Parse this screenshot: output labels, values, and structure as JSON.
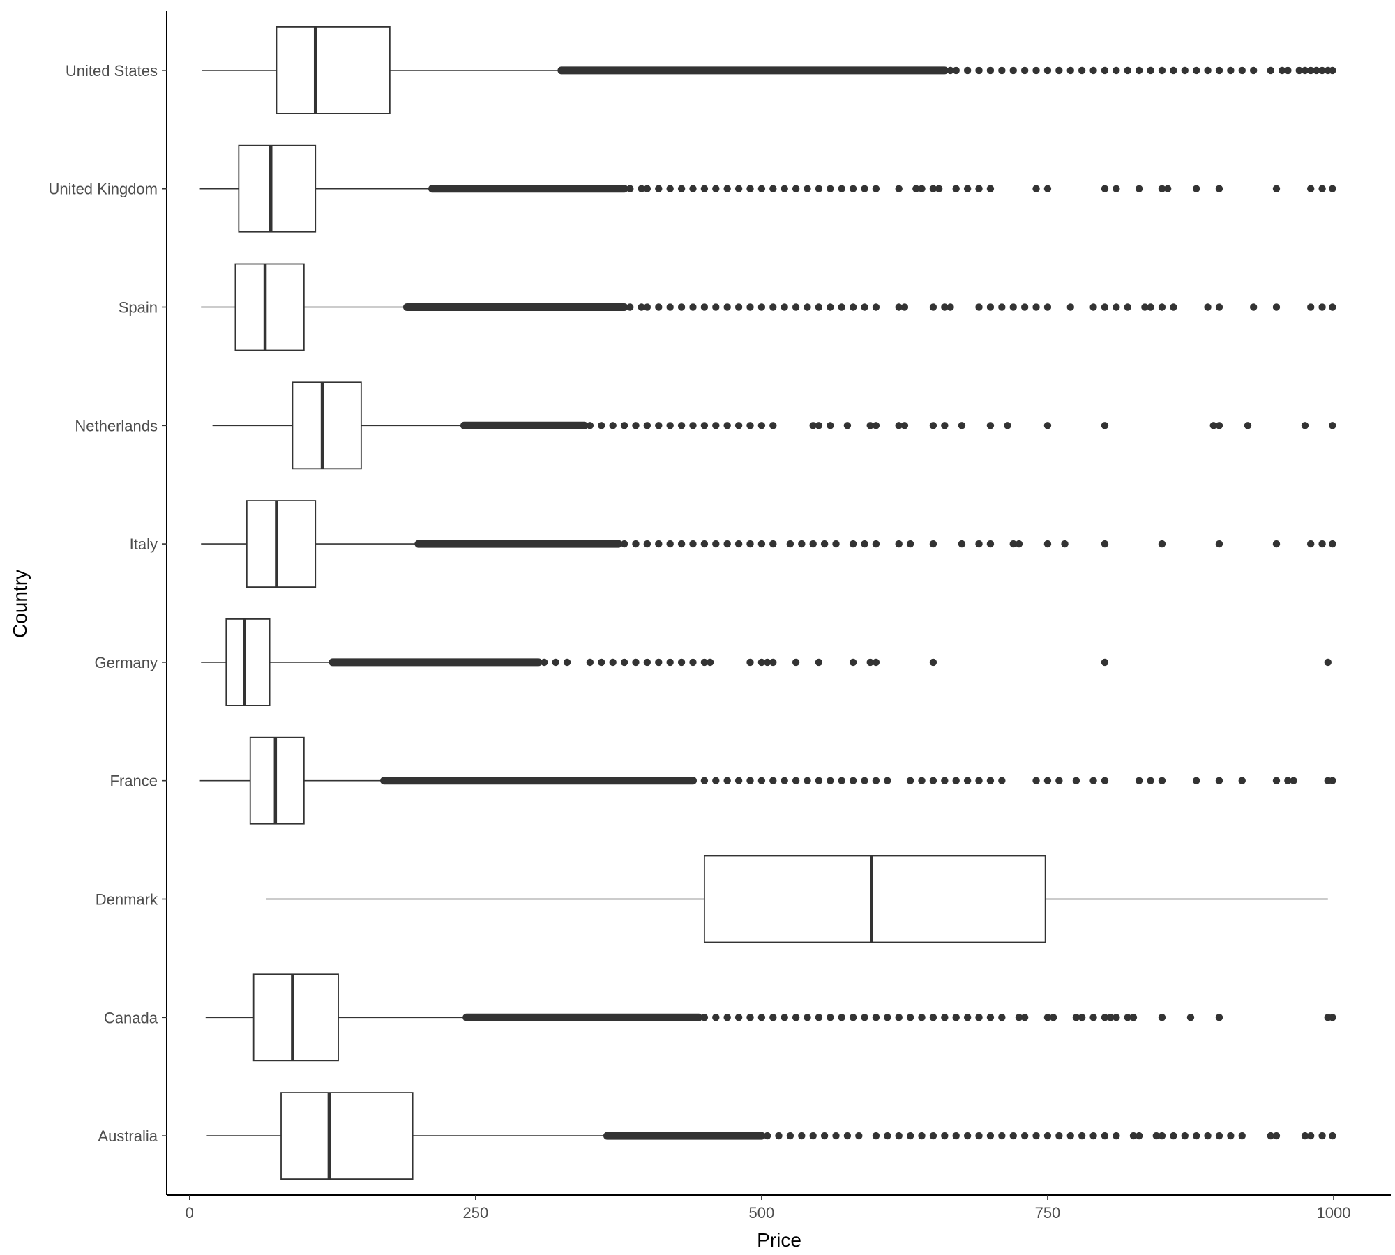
{
  "chart_data": {
    "type": "boxplot",
    "orientation": "horizontal",
    "xlabel": "Price",
    "ylabel": "Country",
    "xlim": [
      -20,
      1050
    ],
    "x_ticks": [
      0,
      250,
      500,
      750,
      1000
    ],
    "x_tick_labels": [
      "0",
      "250",
      "500",
      "750",
      "1000"
    ],
    "grid": false,
    "legend": "none",
    "colors": {
      "box_stroke": "#333333",
      "box_fill": "#ffffff",
      "outlier": "#333333",
      "axis": "#000000",
      "text": "#4d4d4d"
    },
    "categories": [
      "United States",
      "United Kingdom",
      "Spain",
      "Netherlands",
      "Italy",
      "Germany",
      "France",
      "Denmark",
      "Canada",
      "Australia"
    ],
    "boxes": [
      {
        "name": "United States",
        "whisker_low": 11,
        "q1": 76,
        "median": 110,
        "q3": 175,
        "whisker_high": 325,
        "outlier_ranges": [
          [
            325,
            660
          ]
        ],
        "outliers": [
          665,
          670,
          680,
          690,
          700,
          710,
          720,
          730,
          740,
          750,
          760,
          770,
          780,
          790,
          800,
          810,
          820,
          830,
          840,
          850,
          860,
          870,
          880,
          890,
          900,
          910,
          920,
          930,
          945,
          955,
          960,
          970,
          975,
          980,
          985,
          990,
          995,
          999
        ]
      },
      {
        "name": "United Kingdom",
        "whisker_low": 9,
        "q1": 43,
        "median": 71,
        "q3": 110,
        "whisker_high": 212,
        "outlier_ranges": [
          [
            212,
            380
          ]
        ],
        "outliers": [
          385,
          395,
          400,
          410,
          420,
          430,
          440,
          450,
          460,
          470,
          480,
          490,
          500,
          510,
          520,
          530,
          540,
          550,
          560,
          570,
          580,
          590,
          600,
          620,
          635,
          640,
          650,
          655,
          670,
          680,
          690,
          700,
          740,
          750,
          800,
          810,
          830,
          850,
          855,
          880,
          900,
          950,
          980,
          990,
          999
        ]
      },
      {
        "name": "Spain",
        "whisker_low": 10,
        "q1": 40,
        "median": 66,
        "q3": 100,
        "whisker_high": 190,
        "outlier_ranges": [
          [
            190,
            380
          ]
        ],
        "outliers": [
          385,
          395,
          400,
          410,
          420,
          430,
          440,
          450,
          460,
          470,
          480,
          490,
          500,
          510,
          520,
          530,
          540,
          550,
          560,
          570,
          580,
          590,
          600,
          620,
          625,
          650,
          660,
          665,
          690,
          700,
          710,
          720,
          730,
          740,
          750,
          770,
          790,
          800,
          810,
          820,
          835,
          840,
          850,
          860,
          890,
          900,
          930,
          950,
          980,
          990,
          999
        ]
      },
      {
        "name": "Netherlands",
        "whisker_low": 20,
        "q1": 90,
        "median": 116,
        "q3": 150,
        "whisker_high": 240,
        "outlier_ranges": [
          [
            240,
            345
          ]
        ],
        "outliers": [
          350,
          360,
          370,
          380,
          390,
          400,
          410,
          420,
          430,
          440,
          450,
          460,
          470,
          480,
          490,
          500,
          510,
          545,
          550,
          560,
          575,
          595,
          600,
          620,
          625,
          650,
          660,
          675,
          700,
          715,
          750,
          800,
          895,
          900,
          925,
          975,
          999
        ]
      },
      {
        "name": "Italy",
        "whisker_low": 10,
        "q1": 50,
        "median": 76,
        "q3": 110,
        "whisker_high": 200,
        "outlier_ranges": [
          [
            200,
            375
          ]
        ],
        "outliers": [
          380,
          390,
          400,
          410,
          420,
          430,
          440,
          450,
          460,
          470,
          480,
          490,
          500,
          510,
          525,
          535,
          545,
          555,
          565,
          580,
          590,
          600,
          620,
          630,
          650,
          675,
          690,
          700,
          720,
          725,
          750,
          765,
          800,
          850,
          900,
          950,
          980,
          990,
          999
        ]
      },
      {
        "name": "Germany",
        "whisker_low": 10,
        "q1": 32,
        "median": 48,
        "q3": 70,
        "whisker_high": 125,
        "outlier_ranges": [
          [
            125,
            305
          ]
        ],
        "outliers": [
          310,
          320,
          330,
          350,
          360,
          370,
          380,
          390,
          400,
          410,
          420,
          430,
          440,
          450,
          455,
          490,
          500,
          505,
          510,
          530,
          550,
          580,
          595,
          600,
          650,
          800,
          995
        ]
      },
      {
        "name": "France",
        "whisker_low": 9,
        "q1": 53,
        "median": 75,
        "q3": 100,
        "whisker_high": 170,
        "outlier_ranges": [
          [
            170,
            440
          ]
        ],
        "outliers": [
          450,
          460,
          470,
          480,
          490,
          500,
          510,
          520,
          530,
          540,
          550,
          560,
          570,
          580,
          590,
          600,
          610,
          630,
          640,
          650,
          660,
          670,
          680,
          690,
          700,
          710,
          740,
          750,
          760,
          775,
          790,
          800,
          830,
          840,
          850,
          880,
          900,
          920,
          950,
          960,
          965,
          995,
          999
        ]
      },
      {
        "name": "Denmark",
        "whisker_low": 67,
        "q1": 450,
        "median": 596,
        "q3": 748,
        "whisker_high": 995,
        "outlier_ranges": [],
        "outliers": []
      },
      {
        "name": "Canada",
        "whisker_low": 14,
        "q1": 56,
        "median": 90,
        "q3": 130,
        "whisker_high": 242,
        "outlier_ranges": [
          [
            242,
            445
          ]
        ],
        "outliers": [
          450,
          460,
          470,
          480,
          490,
          500,
          510,
          520,
          530,
          540,
          550,
          560,
          570,
          580,
          590,
          600,
          610,
          620,
          630,
          640,
          650,
          660,
          670,
          680,
          690,
          700,
          710,
          725,
          730,
          750,
          755,
          775,
          780,
          790,
          800,
          805,
          810,
          820,
          825,
          850,
          875,
          900,
          995,
          999
        ]
      },
      {
        "name": "Australia",
        "whisker_low": 15,
        "q1": 80,
        "median": 122,
        "q3": 195,
        "whisker_high": 365,
        "outlier_ranges": [
          [
            365,
            500
          ]
        ],
        "outliers": [
          505,
          515,
          525,
          535,
          545,
          555,
          565,
          575,
          585,
          600,
          610,
          620,
          630,
          640,
          650,
          660,
          670,
          680,
          690,
          700,
          710,
          720,
          730,
          740,
          750,
          760,
          770,
          780,
          790,
          800,
          810,
          825,
          830,
          845,
          850,
          860,
          870,
          880,
          890,
          900,
          910,
          920,
          945,
          950,
          975,
          980,
          990,
          999
        ]
      }
    ]
  }
}
